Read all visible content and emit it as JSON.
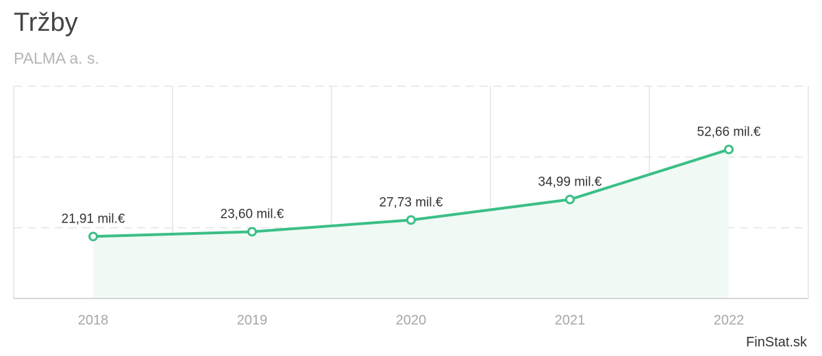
{
  "header": {
    "title": "Tržby",
    "subtitle": "PALMA a. s."
  },
  "source": "FinStat.sk",
  "colors": {
    "line": "#3bbf86",
    "area": "#f1f9f5",
    "grid": "#e3e3e3",
    "title": "#444444",
    "subtitle": "#b5b5b5"
  },
  "chart_data": {
    "type": "area",
    "categories": [
      "2018",
      "2019",
      "2020",
      "2021",
      "2022"
    ],
    "values": [
      21.91,
      23.6,
      27.73,
      34.99,
      52.66
    ],
    "labels": [
      "21,91 mil.€",
      "23,60 mil.€",
      "27,73 mil.€",
      "34,99 mil.€",
      "52,66 mil.€"
    ],
    "title": "Tržby",
    "subtitle": "PALMA a. s.",
    "unit": "mil.€",
    "ylim": [
      0,
      75
    ],
    "grid": true,
    "legend": "none"
  }
}
